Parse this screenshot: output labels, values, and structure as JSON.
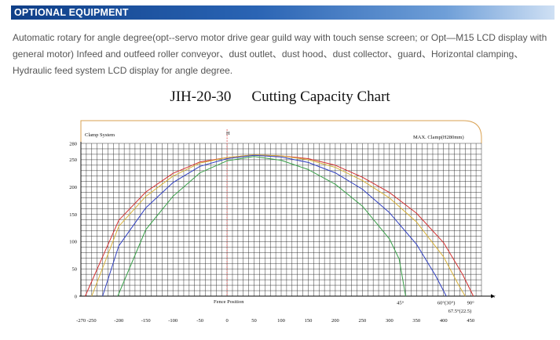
{
  "header": {
    "title": "OPTIONAL EQUIPMENT"
  },
  "description": "Automatic rotary for angle degree(opt--servo motor drive gear guild way with touch sense screen; or Opt—M15 LCD display with general motor) Infeed and outfeed roller conveyor、dust outlet、dust hood、dust collector、guard、Horizontal clamping、Hydraulic feed system LCD display for angle degree.",
  "chart_data": {
    "type": "line",
    "title_model": "JIH-20-30",
    "title_text": "Cutting Capacity Chart",
    "top_left_label": "Clamp System",
    "top_right_label": "MAX. Clamp(H280mm)",
    "center_label": "H",
    "fence_label": "Fence Position",
    "w_label": "w",
    "y_ticks": [
      0,
      50,
      100,
      150,
      200,
      250,
      280
    ],
    "x_ticks": [
      "-270 -250",
      "-200",
      "-150",
      "-100",
      "-50",
      "0",
      "50",
      "100",
      "150",
      "200",
      "250",
      "300",
      "350",
      "400",
      "450"
    ],
    "x_tick_values": [
      -260,
      -200,
      -150,
      -100,
      -50,
      0,
      50,
      100,
      150,
      200,
      250,
      300,
      350,
      400,
      450
    ],
    "xlim": [
      -270,
      470
    ],
    "ylim": [
      0,
      280
    ],
    "angle_labels": [
      {
        "text": "45°",
        "x": 320,
        "y": -12
      },
      {
        "text": "60°(30°)",
        "x": 405,
        "y": -12
      },
      {
        "text": "90°",
        "x": 450,
        "y": -12
      },
      {
        "text": "67.5°(22.5)",
        "x": 430,
        "y": -27
      }
    ],
    "series": [
      {
        "color": "#d23030",
        "points": [
          [
            -262,
            0
          ],
          [
            -200,
            139
          ],
          [
            -150,
            191
          ],
          [
            -100,
            225
          ],
          [
            -50,
            246
          ],
          [
            0,
            254
          ],
          [
            50,
            259
          ],
          [
            100,
            257
          ],
          [
            150,
            252
          ],
          [
            200,
            240
          ],
          [
            250,
            218
          ],
          [
            300,
            190
          ],
          [
            350,
            152
          ],
          [
            400,
            98
          ],
          [
            435,
            40
          ],
          [
            455,
            0
          ]
        ]
      },
      {
        "color": "#d8b23a",
        "points": [
          [
            -250,
            0
          ],
          [
            -200,
            128
          ],
          [
            -150,
            183
          ],
          [
            -100,
            220
          ],
          [
            -50,
            244
          ],
          [
            0,
            254
          ],
          [
            50,
            259
          ],
          [
            100,
            257
          ],
          [
            150,
            250
          ],
          [
            200,
            236
          ],
          [
            250,
            212
          ],
          [
            300,
            180
          ],
          [
            350,
            136
          ],
          [
            400,
            72
          ],
          [
            428,
            20
          ],
          [
            440,
            0
          ]
        ]
      },
      {
        "color": "#2f3fc0",
        "points": [
          [
            -230,
            0
          ],
          [
            -200,
            92
          ],
          [
            -150,
            162
          ],
          [
            -100,
            208
          ],
          [
            -50,
            238
          ],
          [
            0,
            252
          ],
          [
            50,
            258
          ],
          [
            100,
            255
          ],
          [
            150,
            245
          ],
          [
            200,
            226
          ],
          [
            250,
            196
          ],
          [
            300,
            153
          ],
          [
            350,
            95
          ],
          [
            385,
            38
          ],
          [
            405,
            0
          ]
        ]
      },
      {
        "color": "#3aa04a",
        "points": [
          [
            -202,
            0
          ],
          [
            -150,
            122
          ],
          [
            -100,
            183
          ],
          [
            -50,
            226
          ],
          [
            0,
            248
          ],
          [
            50,
            256
          ],
          [
            100,
            249
          ],
          [
            150,
            232
          ],
          [
            200,
            205
          ],
          [
            250,
            165
          ],
          [
            300,
            105
          ],
          [
            318,
            68
          ],
          [
            330,
            0
          ]
        ]
      }
    ]
  }
}
